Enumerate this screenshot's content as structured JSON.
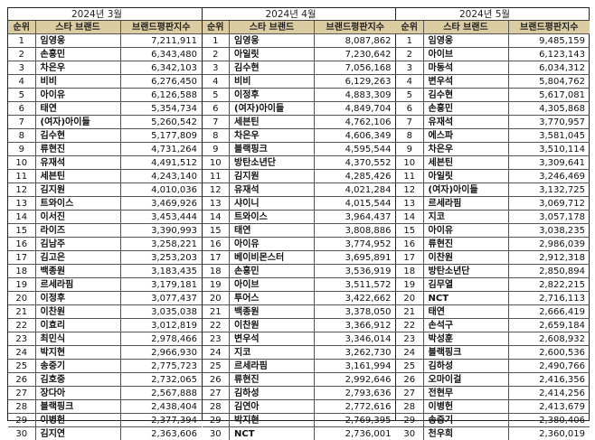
{
  "headers": {
    "rank": "순위",
    "brand": "스타 브랜드",
    "index": "브랜드평판지수"
  },
  "months": [
    {
      "title": "2024년 3월",
      "rows": [
        {
          "rank": "1",
          "name": "임영웅",
          "value": "7,211,911"
        },
        {
          "rank": "2",
          "name": "손흥민",
          "value": "6,343,480"
        },
        {
          "rank": "3",
          "name": "차은우",
          "value": "6,342,103"
        },
        {
          "rank": "4",
          "name": "비비",
          "value": "6,276,450"
        },
        {
          "rank": "5",
          "name": "아이유",
          "value": "6,126,588"
        },
        {
          "rank": "6",
          "name": "태연",
          "value": "5,354,734"
        },
        {
          "rank": "7",
          "name": "(여자)아이들",
          "value": "5,260,542"
        },
        {
          "rank": "8",
          "name": "김수현",
          "value": "5,177,809"
        },
        {
          "rank": "9",
          "name": "류현진",
          "value": "4,731,264"
        },
        {
          "rank": "10",
          "name": "유재석",
          "value": "4,491,512"
        },
        {
          "rank": "11",
          "name": "세븐틴",
          "value": "4,243,140"
        },
        {
          "rank": "12",
          "name": "김지원",
          "value": "4,010,036"
        },
        {
          "rank": "13",
          "name": "트와이스",
          "value": "3,469,926"
        },
        {
          "rank": "14",
          "name": "이서진",
          "value": "3,453,444"
        },
        {
          "rank": "15",
          "name": "라이즈",
          "value": "3,390,993"
        },
        {
          "rank": "16",
          "name": "김남주",
          "value": "3,258,221"
        },
        {
          "rank": "17",
          "name": "김고은",
          "value": "3,253,203"
        },
        {
          "rank": "18",
          "name": "백종원",
          "value": "3,183,435"
        },
        {
          "rank": "19",
          "name": "르세라핌",
          "value": "3,179,181"
        },
        {
          "rank": "20",
          "name": "이정후",
          "value": "3,077,437"
        },
        {
          "rank": "21",
          "name": "이찬원",
          "value": "3,035,038"
        },
        {
          "rank": "22",
          "name": "이효리",
          "value": "3,012,819"
        },
        {
          "rank": "23",
          "name": "최민식",
          "value": "2,978,466"
        },
        {
          "rank": "24",
          "name": "박지현",
          "value": "2,966,930"
        },
        {
          "rank": "25",
          "name": "송중기",
          "value": "2,775,723"
        },
        {
          "rank": "26",
          "name": "김호중",
          "value": "2,732,065"
        },
        {
          "rank": "27",
          "name": "장다아",
          "value": "2,567,888"
        },
        {
          "rank": "28",
          "name": "블랙핑크",
          "value": "2,438,404"
        },
        {
          "rank": "29",
          "name": "이병헌",
          "value": "2,377,394"
        },
        {
          "rank": "30",
          "name": "김지연",
          "value": "2,363,606"
        }
      ]
    },
    {
      "title": "2024년 4월",
      "rows": [
        {
          "rank": "1",
          "name": "임영웅",
          "value": "8,087,862"
        },
        {
          "rank": "2",
          "name": "아일릿",
          "value": "7,230,642"
        },
        {
          "rank": "3",
          "name": "김수현",
          "value": "7,056,168"
        },
        {
          "rank": "4",
          "name": "비비",
          "value": "6,129,263"
        },
        {
          "rank": "5",
          "name": "이정후",
          "value": "4,883,309"
        },
        {
          "rank": "6",
          "name": "(여자)아이들",
          "value": "4,849,704"
        },
        {
          "rank": "7",
          "name": "세븐틴",
          "value": "4,762,106"
        },
        {
          "rank": "8",
          "name": "차은우",
          "value": "4,606,349"
        },
        {
          "rank": "9",
          "name": "블랙핑크",
          "value": "4,595,544"
        },
        {
          "rank": "10",
          "name": "방탄소년단",
          "value": "4,370,552"
        },
        {
          "rank": "11",
          "name": "김지원",
          "value": "4,285,426"
        },
        {
          "rank": "12",
          "name": "유재석",
          "value": "4,021,284"
        },
        {
          "rank": "13",
          "name": "샤이니",
          "value": "4,015,544"
        },
        {
          "rank": "14",
          "name": "트와이스",
          "value": "3,964,437"
        },
        {
          "rank": "15",
          "name": "태연",
          "value": "3,808,886"
        },
        {
          "rank": "16",
          "name": "아이유",
          "value": "3,774,952"
        },
        {
          "rank": "17",
          "name": "베이비몬스터",
          "value": "3,695,891"
        },
        {
          "rank": "18",
          "name": "손흥민",
          "value": "3,536,919"
        },
        {
          "rank": "19",
          "name": "아이브",
          "value": "3,511,572"
        },
        {
          "rank": "20",
          "name": "투어스",
          "value": "3,422,662"
        },
        {
          "rank": "21",
          "name": "백종원",
          "value": "3,378,050"
        },
        {
          "rank": "22",
          "name": "이찬원",
          "value": "3,366,912"
        },
        {
          "rank": "23",
          "name": "변우석",
          "value": "3,346,014"
        },
        {
          "rank": "24",
          "name": "지코",
          "value": "3,262,730"
        },
        {
          "rank": "25",
          "name": "르세라핌",
          "value": "3,161,994"
        },
        {
          "rank": "26",
          "name": "류현진",
          "value": "2,992,646"
        },
        {
          "rank": "27",
          "name": "김하성",
          "value": "2,793,636"
        },
        {
          "rank": "28",
          "name": "김연아",
          "value": "2,772,616"
        },
        {
          "rank": "29",
          "name": "박지현",
          "value": "2,769,395"
        },
        {
          "rank": "30",
          "name": "NCT",
          "value": "2,736,001"
        }
      ]
    },
    {
      "title": "2024년 5월",
      "rows": [
        {
          "rank": "1",
          "name": "임영웅",
          "value": "9,485,159"
        },
        {
          "rank": "2",
          "name": "아이브",
          "value": "6,123,143"
        },
        {
          "rank": "3",
          "name": "마동석",
          "value": "6,034,312"
        },
        {
          "rank": "4",
          "name": "변우석",
          "value": "5,804,762"
        },
        {
          "rank": "5",
          "name": "김수현",
          "value": "5,617,081"
        },
        {
          "rank": "6",
          "name": "손흥민",
          "value": "4,305,868"
        },
        {
          "rank": "7",
          "name": "유재석",
          "value": "3,770,957"
        },
        {
          "rank": "8",
          "name": "에스파",
          "value": "3,581,045"
        },
        {
          "rank": "9",
          "name": "차은우",
          "value": "3,510,114"
        },
        {
          "rank": "10",
          "name": "세븐틴",
          "value": "3,309,641"
        },
        {
          "rank": "11",
          "name": "아일릿",
          "value": "3,246,469"
        },
        {
          "rank": "12",
          "name": "(여자)아이들",
          "value": "3,132,725"
        },
        {
          "rank": "13",
          "name": "르세라핌",
          "value": "3,069,712"
        },
        {
          "rank": "14",
          "name": "지코",
          "value": "3,057,178"
        },
        {
          "rank": "15",
          "name": "아이유",
          "value": "3,038,235"
        },
        {
          "rank": "16",
          "name": "류현진",
          "value": "2,986,039"
        },
        {
          "rank": "17",
          "name": "이찬원",
          "value": "2,912,318"
        },
        {
          "rank": "18",
          "name": "방탄소년단",
          "value": "2,850,894"
        },
        {
          "rank": "19",
          "name": "김무열",
          "value": "2,822,215"
        },
        {
          "rank": "20",
          "name": "NCT",
          "value": "2,716,113"
        },
        {
          "rank": "21",
          "name": "태연",
          "value": "2,666,419"
        },
        {
          "rank": "22",
          "name": "손석구",
          "value": "2,659,184"
        },
        {
          "rank": "23",
          "name": "박성훈",
          "value": "2,608,932"
        },
        {
          "rank": "24",
          "name": "블랙핑크",
          "value": "2,600,536"
        },
        {
          "rank": "25",
          "name": "김하성",
          "value": "2,490,766"
        },
        {
          "rank": "26",
          "name": "오마이걸",
          "value": "2,416,356"
        },
        {
          "rank": "27",
          "name": "전현무",
          "value": "2,414,256"
        },
        {
          "rank": "28",
          "name": "이병헌",
          "value": "2,413,679"
        },
        {
          "rank": "29",
          "name": "송중기",
          "value": "2,380,406"
        },
        {
          "rank": "30",
          "name": "천우희",
          "value": "2,360,019"
        }
      ]
    }
  ]
}
